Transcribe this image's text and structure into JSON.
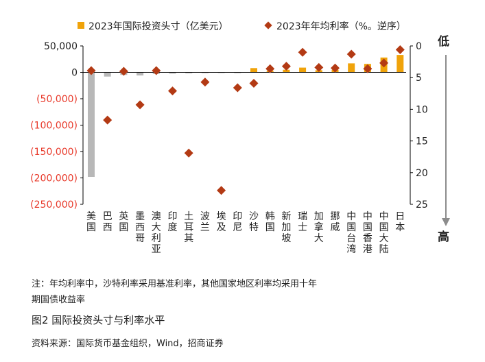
{
  "chart_data": {
    "type": "bar",
    "categories": [
      "美国",
      "巴西",
      "英国",
      "墨西哥",
      "澳大利亚",
      "印度",
      "土耳其",
      "波兰",
      "埃及",
      "印尼",
      "沙特",
      "韩国",
      "新加坡",
      "瑞士",
      "加拿大",
      "挪威",
      "中国台湾",
      "中国香港",
      "中国大陆",
      "日本"
    ],
    "series": [
      {
        "name": "2023年国际投资头寸（亿美元）",
        "kind": "bar",
        "axis": "left",
        "values": [
          -198000,
          -8000,
          -5000,
          -6000,
          -3000,
          -2500,
          -2000,
          -1500,
          -1000,
          -1500,
          8000,
          3000,
          5000,
          9000,
          4000,
          5000,
          17000,
          16000,
          28000,
          33000
        ]
      },
      {
        "name": "2023年年均利率（%。逆序）",
        "kind": "diamond",
        "axis": "right",
        "values": [
          3.9,
          11.7,
          4.0,
          9.3,
          3.9,
          7.1,
          16.9,
          5.7,
          22.8,
          6.6,
          5.9,
          3.6,
          3.2,
          1.0,
          3.4,
          3.5,
          1.3,
          3.6,
          2.7,
          0.6
        ]
      }
    ],
    "left_axis": {
      "ylim": [
        -250000,
        50000
      ],
      "ticks": [
        50000,
        0,
        -50000,
        -100000,
        -150000,
        -200000,
        -250000
      ],
      "tick_labels": [
        "50,000",
        "0",
        "(50,000)",
        "(100,000)",
        "(150,000)",
        "(200,000)",
        "(250,000)"
      ],
      "negative_label_color": "#e8392a"
    },
    "right_axis": {
      "ylim": [
        0,
        25
      ],
      "reversed": true,
      "ticks": [
        0,
        5,
        10,
        15,
        20,
        25
      ],
      "tick_labels": [
        "0",
        "5",
        "10",
        "15",
        "20",
        "25"
      ],
      "top_label": "低",
      "bottom_label": "高"
    },
    "colors": {
      "bar_positive": "#f0a30a",
      "bar_negative": "#b8b8b8",
      "marker": "#b33a14",
      "axis": "#000000",
      "arrow": "#8c8c8c"
    },
    "legend_position": "top"
  },
  "notes": {
    "line1": "注：年均利率中，沙特利率采用基准利率，其他国家地区利率均采用十年",
    "line2": "期国债收益率"
  },
  "figure_title": "图2 国际投资头寸与利率水平",
  "source": "资料来源：国际货币基金组织，Wind，招商证券"
}
